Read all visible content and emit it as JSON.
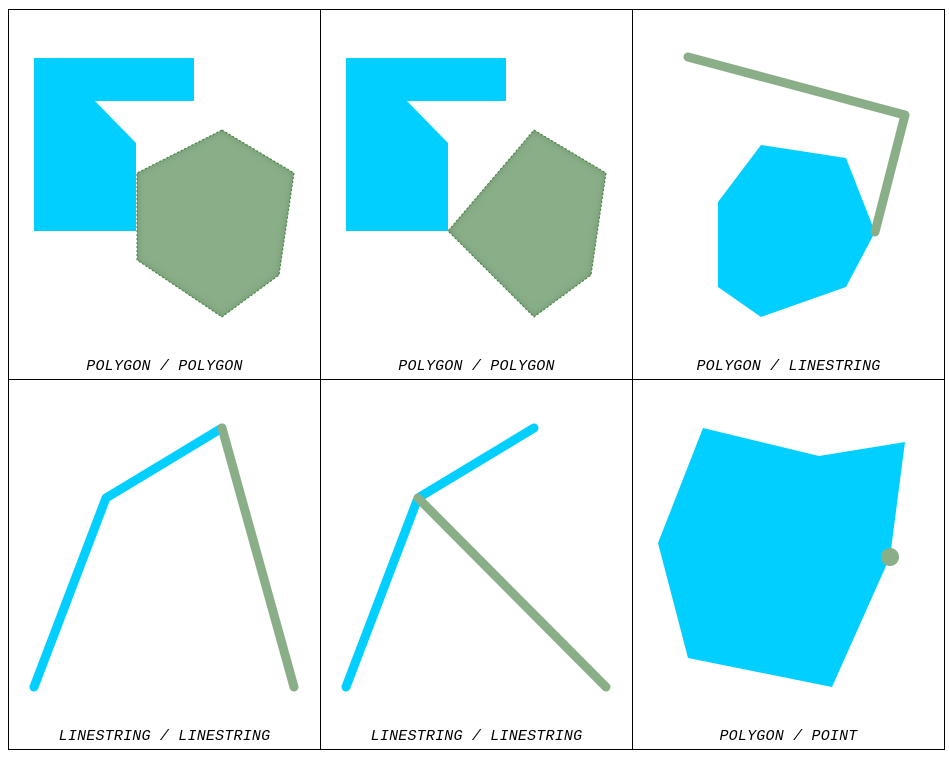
{
  "colors": {
    "primary": "#00cfff",
    "secondary": "#8aaf88",
    "secondary_edge": "#3a8a3a"
  },
  "cells": [
    {
      "caption": "POLYGON / POLYGON"
    },
    {
      "caption": "POLYGON / POLYGON"
    },
    {
      "caption": "POLYGON / LINESTRING"
    },
    {
      "caption": "LINESTRING / LINESTRING"
    },
    {
      "caption": "LINESTRING / LINESTRING"
    },
    {
      "caption": "POLYGON / POINT"
    }
  ]
}
